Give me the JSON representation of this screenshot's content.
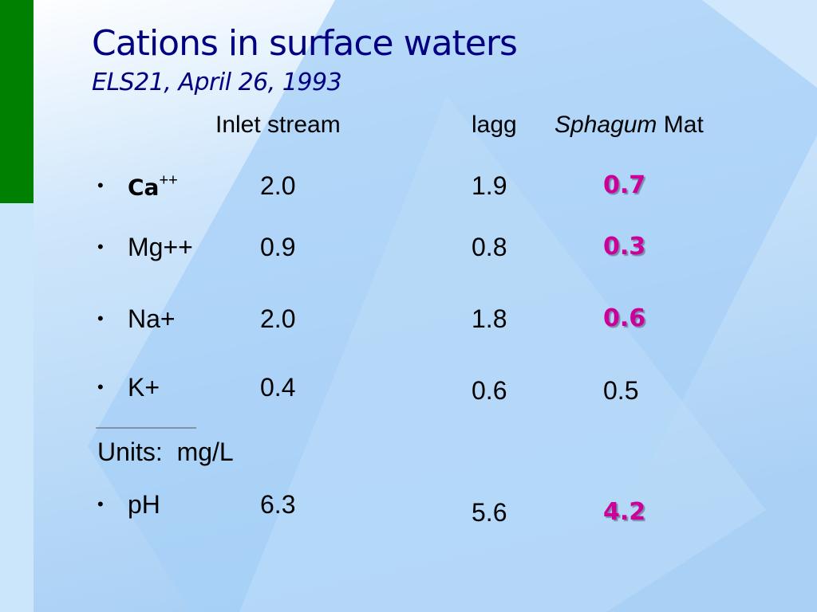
{
  "header": {
    "title": "Cations in surface waters",
    "subtitle": "ELS21, April 26, 1993"
  },
  "table": {
    "columns": [
      "Inlet stream",
      "lagg",
      [
        "Sphagum",
        "Mat"
      ]
    ],
    "rows": [
      {
        "label": [
          "Ca",
          "++"
        ],
        "values": [
          "2.0",
          "1.9",
          "0.7"
        ],
        "highlighted": true
      },
      {
        "label": [
          "Mg++"
        ],
        "values": [
          "0.9",
          "0.8",
          "0.3"
        ],
        "highlighted": true
      },
      {
        "label": [
          "Na+"
        ],
        "values": [
          "2.0",
          "1.8",
          "0.6"
        ],
        "highlighted": true
      },
      {
        "label": [
          "K+"
        ],
        "values": [
          "0.4",
          "0.6",
          "0.5"
        ],
        "highlighted": false
      }
    ],
    "units": "Units:  mg/L",
    "extra_rows": [
      {
        "label": [
          "pH"
        ],
        "values": [
          "6.3",
          "5.6",
          "4.2"
        ],
        "highlighted": true
      }
    ]
  }
}
